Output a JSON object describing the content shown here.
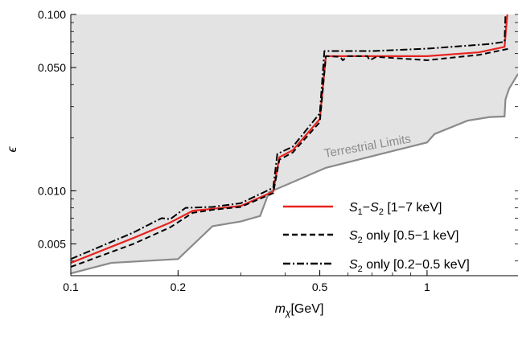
{
  "chart_data": {
    "type": "line",
    "xscale": "log",
    "yscale": "log",
    "xlim": [
      0.1,
      1.8
    ],
    "ylim": [
      0.0033,
      0.1
    ],
    "xlabel": {
      "main": "m",
      "sub": "χ",
      "unit": "[GeV]"
    },
    "ylabel": "ϵ",
    "x_ticks": [
      {
        "value": 0.1,
        "label": "0.1"
      },
      {
        "value": 0.2,
        "label": "0.2"
      },
      {
        "value": 0.5,
        "label": "0.5"
      },
      {
        "value": 1,
        "label": "1"
      }
    ],
    "y_ticks": [
      {
        "value": 0.005,
        "label": "0.005"
      },
      {
        "value": 0.01,
        "label": "0.010"
      },
      {
        "value": 0.05,
        "label": "0.050"
      },
      {
        "value": 0.1,
        "label": "0.100"
      }
    ],
    "region": {
      "label": "Terrestrial Limits",
      "color": "#e3e3e3",
      "boundary_color": "#8a8a8a",
      "boundary": [
        [
          0.1,
          0.0034
        ],
        [
          0.13,
          0.0039
        ],
        [
          0.2,
          0.0041
        ],
        [
          0.25,
          0.0063
        ],
        [
          0.3,
          0.0067
        ],
        [
          0.34,
          0.0072
        ],
        [
          0.36,
          0.0098
        ],
        [
          0.52,
          0.0135
        ],
        [
          0.8,
          0.0168
        ],
        [
          1.0,
          0.0188
        ],
        [
          1.05,
          0.021
        ],
        [
          1.3,
          0.025
        ],
        [
          1.5,
          0.0262
        ],
        [
          1.65,
          0.0264
        ],
        [
          1.66,
          0.033
        ],
        [
          1.7,
          0.038
        ],
        [
          1.8,
          0.046
        ]
      ]
    },
    "series": [
      {
        "name": "S1−S2 [1−7 keV]",
        "legend": {
          "pre": "S",
          "sub1": "1",
          "mid": "−S",
          "sub2": "2",
          "post": " [1−7 keV]"
        },
        "color": "#e8231f",
        "dash": "solid",
        "points": [
          [
            0.1,
            0.0039
          ],
          [
            0.15,
            0.0054
          ],
          [
            0.19,
            0.0066
          ],
          [
            0.22,
            0.0077
          ],
          [
            0.25,
            0.0079
          ],
          [
            0.3,
            0.0082
          ],
          [
            0.37,
            0.0099
          ],
          [
            0.385,
            0.0155
          ],
          [
            0.42,
            0.017
          ],
          [
            0.5,
            0.0255
          ],
          [
            0.52,
            0.058
          ],
          [
            0.6,
            0.058
          ],
          [
            0.7,
            0.058
          ],
          [
            1.0,
            0.058
          ],
          [
            1.4,
            0.061
          ],
          [
            1.65,
            0.0655
          ],
          [
            1.68,
            0.1
          ]
        ]
      },
      {
        "name": "S2 only [0.5−1 keV]",
        "legend": {
          "pre": "S",
          "sub1": "2",
          "mid": "",
          "sub2": "",
          "post": " only [0.5−1 keV]"
        },
        "color": "#000000",
        "dash": "dashed",
        "points": [
          [
            0.1,
            0.0037
          ],
          [
            0.15,
            0.005
          ],
          [
            0.19,
            0.0062
          ],
          [
            0.22,
            0.0075
          ],
          [
            0.25,
            0.0078
          ],
          [
            0.3,
            0.0081
          ],
          [
            0.37,
            0.0097
          ],
          [
            0.385,
            0.015
          ],
          [
            0.42,
            0.0165
          ],
          [
            0.5,
            0.0245
          ],
          [
            0.52,
            0.058
          ],
          [
            0.57,
            0.0575
          ],
          [
            0.58,
            0.055
          ],
          [
            0.6,
            0.058
          ],
          [
            0.68,
            0.058
          ],
          [
            0.69,
            0.055
          ],
          [
            0.72,
            0.0575
          ],
          [
            1.0,
            0.055
          ],
          [
            1.4,
            0.059
          ],
          [
            1.7,
            0.064
          ]
        ]
      },
      {
        "name": "S2 only [0.2−0.5 keV]",
        "legend": {
          "pre": "S",
          "sub1": "2",
          "mid": "",
          "sub2": "",
          "post": " only [0.2−0.5 keV]"
        },
        "color": "#000000",
        "dash": "dashdot",
        "points": [
          [
            0.1,
            0.0041
          ],
          [
            0.15,
            0.0058
          ],
          [
            0.18,
            0.007
          ],
          [
            0.19,
            0.0069
          ],
          [
            0.21,
            0.008
          ],
          [
            0.25,
            0.0081
          ],
          [
            0.3,
            0.0085
          ],
          [
            0.37,
            0.0104
          ],
          [
            0.38,
            0.0162
          ],
          [
            0.42,
            0.0178
          ],
          [
            0.5,
            0.0275
          ],
          [
            0.515,
            0.062
          ],
          [
            0.7,
            0.062
          ],
          [
            1.0,
            0.064
          ],
          [
            1.5,
            0.068
          ],
          [
            1.65,
            0.07
          ],
          [
            1.66,
            0.1
          ]
        ]
      }
    ]
  }
}
